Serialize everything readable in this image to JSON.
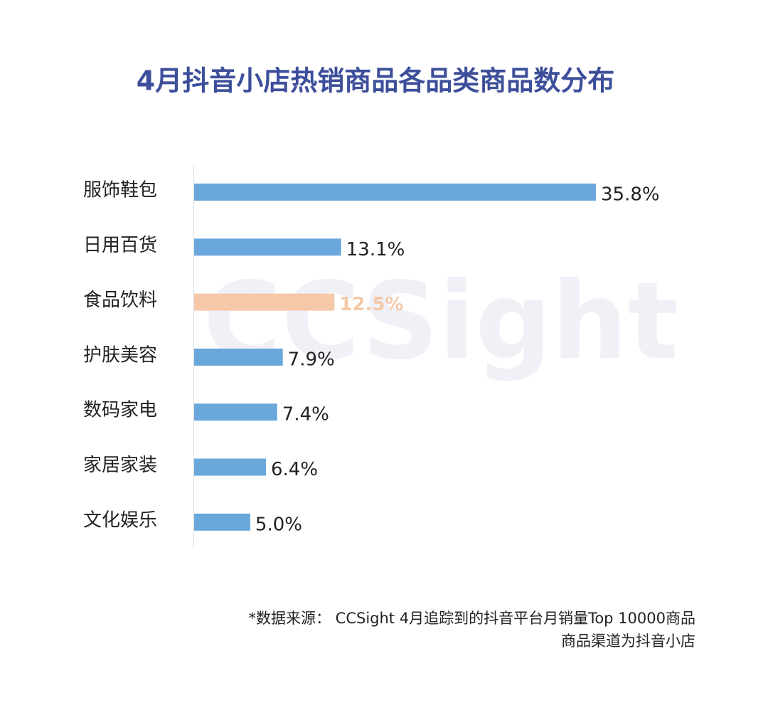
{
  "chart_data": {
    "type": "hbar",
    "title": "4月抖音小店热销商品各品类商品数分布",
    "watermark": "CCSight",
    "categories": [
      "服饰鞋包",
      "日用百货",
      "食品饮料",
      "护肤美容",
      "数码家电",
      "家居家装",
      "文化娱乐"
    ],
    "values": [
      35.8,
      13.1,
      12.5,
      7.9,
      7.4,
      6.4,
      5.0
    ],
    "value_labels": [
      "35.8%",
      "13.1%",
      "12.5%",
      "7.9%",
      "7.4%",
      "6.4%",
      "5.0%"
    ],
    "colors": [
      "#6aa8dc",
      "#6aa8dc",
      "#f5c8a8",
      "#6aa8dc",
      "#6aa8dc",
      "#6aa8dc",
      "#6aa8dc"
    ],
    "label_colors": [
      "#222222",
      "#222222",
      "#f5c8a8",
      "#222222",
      "#222222",
      "#222222",
      "#222222"
    ],
    "xlim": [
      0,
      35.8
    ],
    "notes": [
      "*数据来源： CCSight 4月追踪到的抖音平台月销量Top 10000商品",
      "商品渠道为抖音小店"
    ]
  }
}
